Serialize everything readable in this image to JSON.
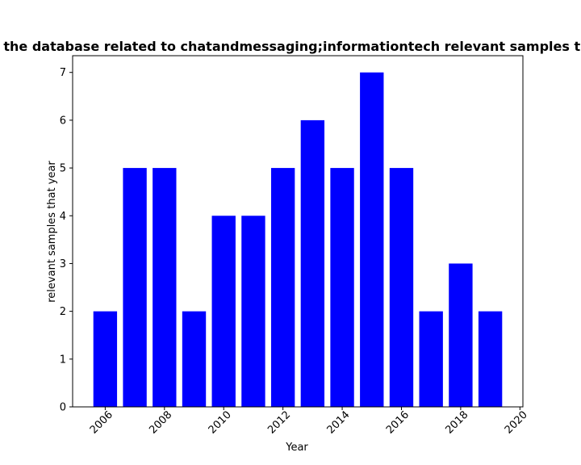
{
  "chart_data": {
    "type": "bar",
    "title": "Number of samples in the database related to chatandmessaging;informationtech relevant samples that year in proportion",
    "xlabel": "Year",
    "ylabel": "relevant samples that year",
    "x": [
      2006,
      2007,
      2008,
      2009,
      2010,
      2011,
      2012,
      2013,
      2014,
      2015,
      2016,
      2017,
      2018,
      2019
    ],
    "values": [
      2,
      5,
      5,
      2,
      4,
      4,
      5,
      6,
      5,
      7,
      5,
      2,
      3,
      2
    ],
    "xlim": [
      2004.9,
      2020.1
    ],
    "ylim": [
      0,
      7.35
    ],
    "xticks": [
      "2006",
      "2008",
      "2010",
      "2012",
      "2014",
      "2016",
      "2018",
      "2020"
    ],
    "yticks": [
      "0",
      "1",
      "2",
      "3",
      "4",
      "5",
      "6",
      "7"
    ],
    "bar_color": "#0000ff",
    "grid": false,
    "legend": "none"
  }
}
